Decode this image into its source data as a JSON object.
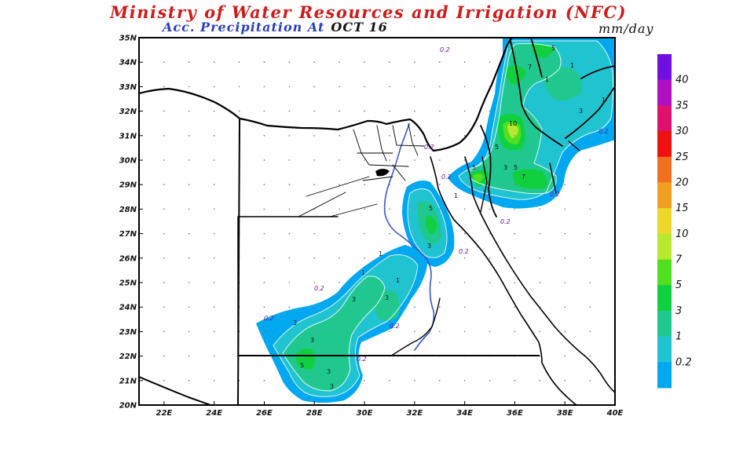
{
  "header": {
    "title": "Ministry of Water Resources and Irrigation (NFC)",
    "subtitle_label": "Acc. Precipitation  At",
    "subtitle_date": "OCT 16",
    "units": "mm/day"
  },
  "map": {
    "lat_ticks": [
      "35N",
      "34N",
      "33N",
      "32N",
      "31N",
      "30N",
      "29N",
      "28N",
      "27N",
      "26N",
      "25N",
      "24N",
      "23N",
      "22N",
      "21N",
      "20N"
    ],
    "lon_ticks": [
      "22E",
      "24E",
      "26E",
      "28E",
      "30E",
      "32E",
      "34E",
      "36E",
      "38E",
      "40E"
    ]
  },
  "legend": {
    "levels": [
      "40",
      "35",
      "30",
      "25",
      "20",
      "15",
      "10",
      "7",
      "5",
      "3",
      "1",
      "0.2"
    ],
    "colors": {
      "c_lt_0_2": "#0090e8",
      "c_0_2_1": "#00a8f0",
      "c_1_3": "#20c4d0",
      "c_3_5": "#20c890",
      "c_5_7": "#10d040",
      "c_7_10": "#50e020",
      "c_10_15": "#b8e830",
      "c_15_20": "#ecd828",
      "c_20_25": "#f0a020",
      "c_25_30": "#f07020",
      "c_30_35": "#f01010",
      "c_35_40": "#e01070",
      "c_40_45": "#b010c0",
      "c_gt_45": "#7010e0"
    }
  },
  "contour_labels": {
    "l01": "0.2",
    "l02": "0.2",
    "l03": "0.2",
    "l04": "0.2",
    "l05": "0.2",
    "l06": "0.2",
    "l07": "0.2",
    "l08": "0.2",
    "l09": "0.2",
    "l10": "0.2",
    "l11": "0.2",
    "l12": "1",
    "l13": "1",
    "l14": "1",
    "l15": "1",
    "l16": "1",
    "l17": "1",
    "l18": "3",
    "l19": "3",
    "l20": "3",
    "l21": "3",
    "l22": "3",
    "l23": "3",
    "l24": "3",
    "l25": "5",
    "l26": "5",
    "l27": "5",
    "l28": "5",
    "l29": "5",
    "l30": "7",
    "l31": "7",
    "l32": "10",
    "l33": "3",
    "l34": "5",
    "l35": "3",
    "l36": "1"
  }
}
